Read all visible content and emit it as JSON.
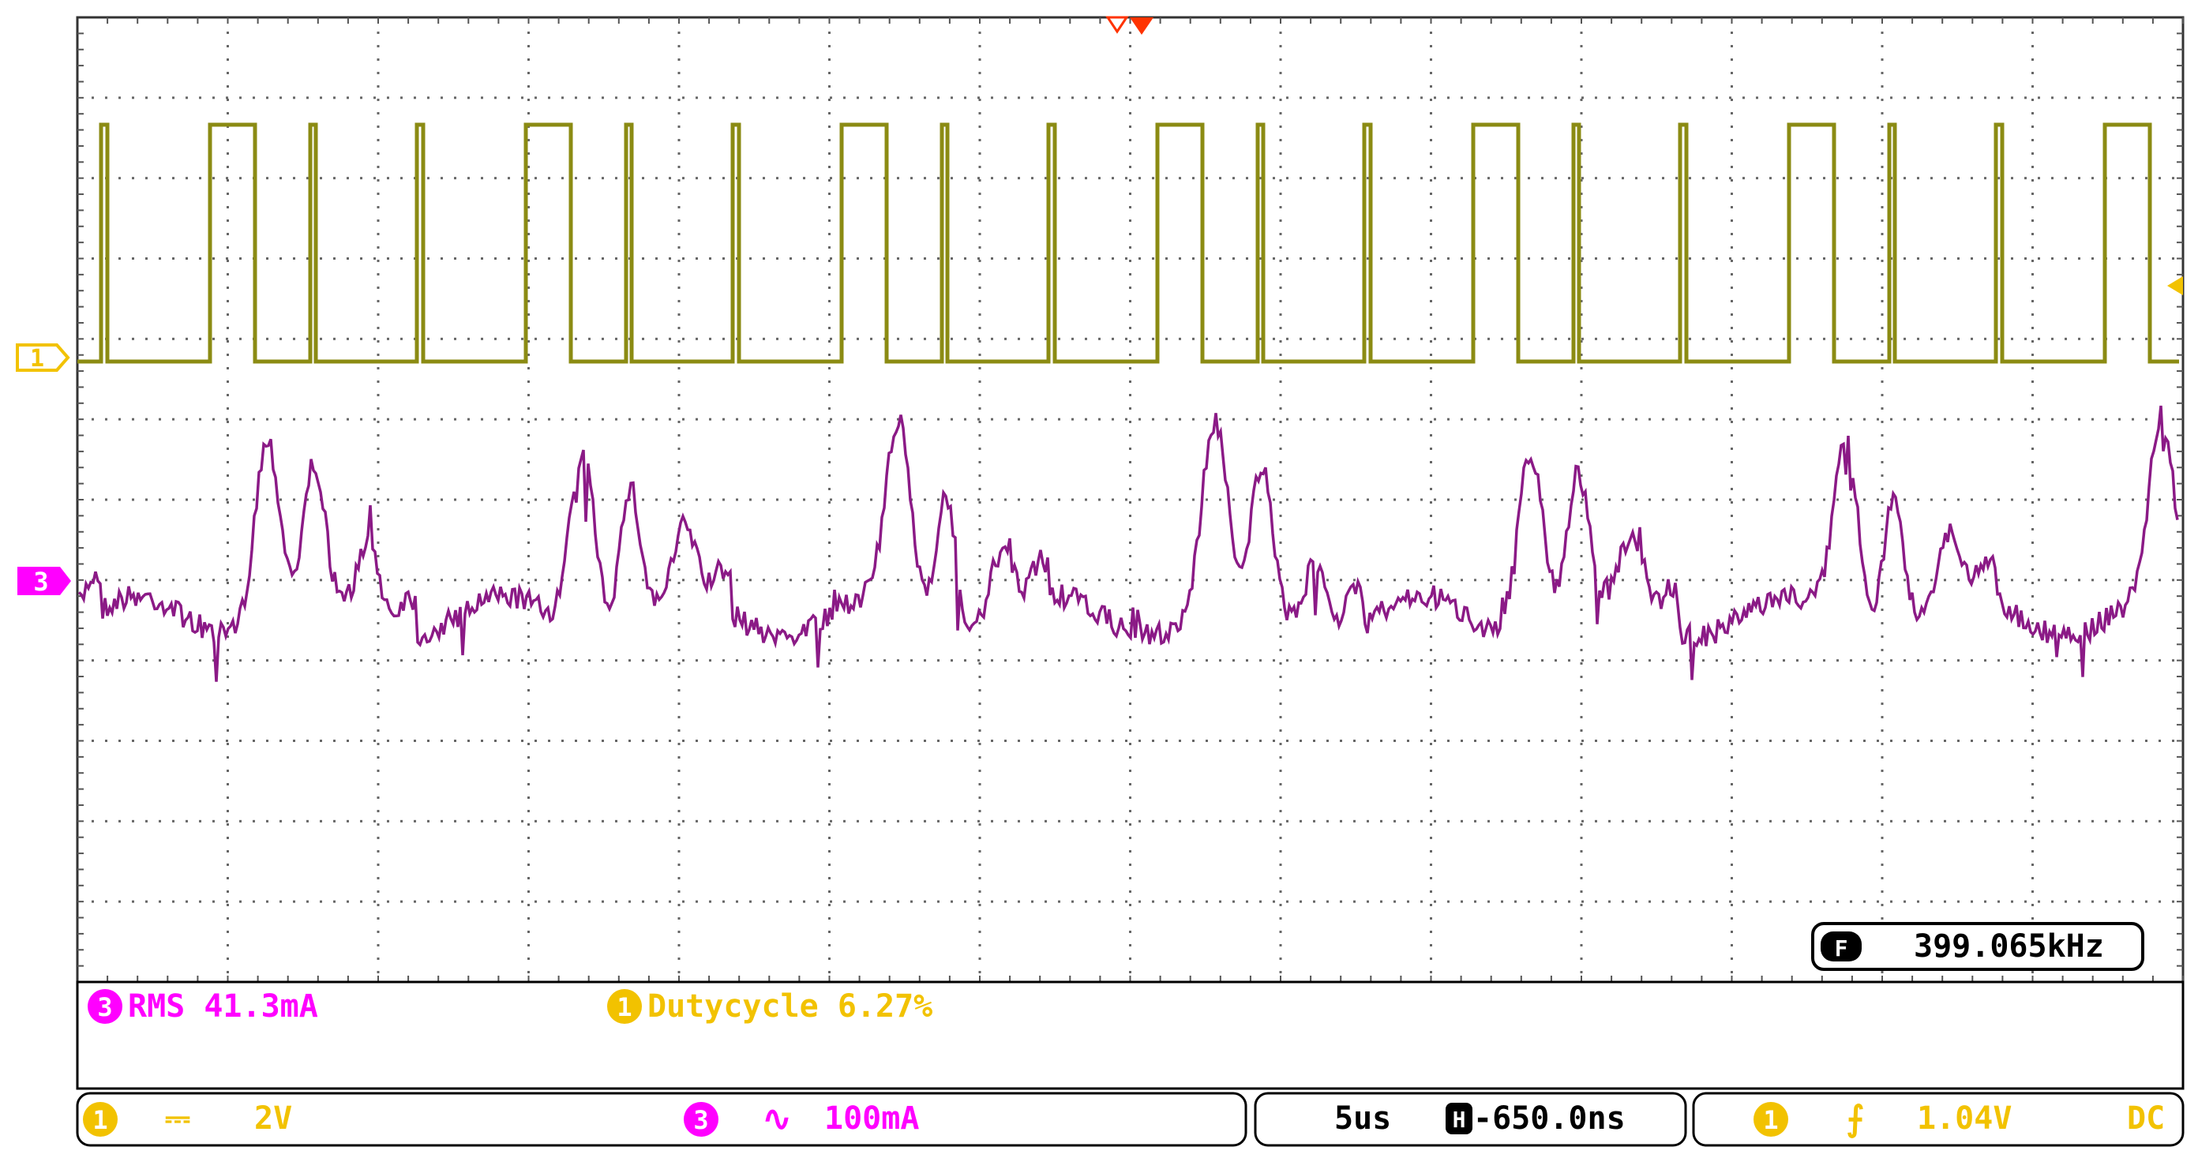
{
  "colors": {
    "ch1": "#8b8b13",
    "ch1_marker": "#f2c200",
    "ch3": "#8b1a86",
    "ch3_marker": "#ff00ff",
    "trigger": "#ff3300",
    "text_black": "#000000"
  },
  "channel_markers": {
    "ch1": "1",
    "ch3": "3"
  },
  "frequency": {
    "icon": "F",
    "value": "399.065kHz"
  },
  "measurements": {
    "ch3": {
      "badge": "3",
      "text": "RMS 41.3mA"
    },
    "ch1": {
      "badge": "1",
      "text": "Dutycycle 6.27%"
    }
  },
  "status_bar": {
    "ch1": {
      "badge": "1",
      "coupling_icon": "dc-coupling-icon",
      "coupling_symbol": "⎓",
      "scale": "2V"
    },
    "ch3": {
      "badge": "3",
      "coupling_icon": "ac-coupling-icon",
      "coupling_symbol": "∿",
      "scale": "100mA"
    },
    "timebase": {
      "scale": "5us",
      "h_icon": "H",
      "position": "-650.0ns"
    },
    "trigger": {
      "badge": "1",
      "edge_icon": "rising-edge-icon",
      "edge_symbol": "⨍",
      "level": "1.04V",
      "coupling": "DC"
    }
  }
}
